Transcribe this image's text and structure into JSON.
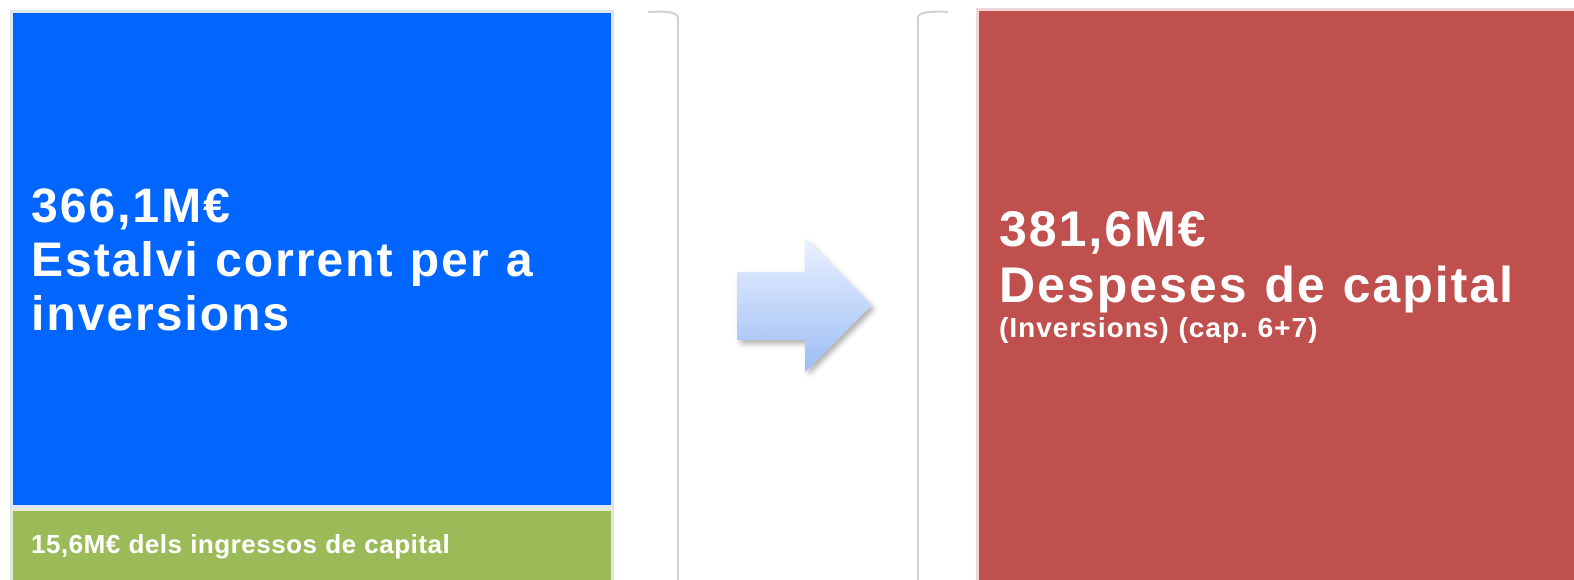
{
  "left": {
    "amount": "366,1M€",
    "label": "Estalvi corrent per a inversions"
  },
  "left_bottom": {
    "label": "15,6M€ dels ingressos de capital"
  },
  "right": {
    "amount": "381,6M€",
    "label": "Despeses de capital",
    "note": "(Inversions) (cap. 6+7)"
  }
}
